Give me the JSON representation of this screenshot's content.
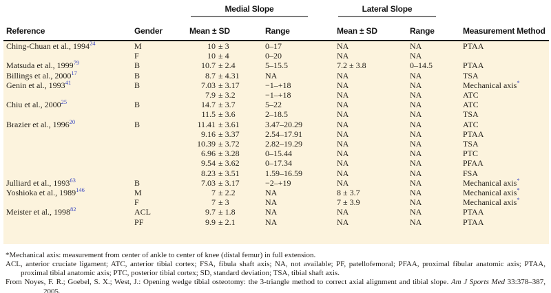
{
  "table": {
    "headers": {
      "reference": "Reference",
      "gender": "Gender",
      "medial_group": "Medial Slope",
      "lateral_group": "Lateral Slope",
      "medial_mean_sd": "Mean ± SD",
      "medial_range": "Range",
      "lateral_mean_sd": "Mean ± SD",
      "lateral_range": "Range",
      "method": "Measurement Method"
    },
    "rows": [
      {
        "reference": "Ching-Chuan et al., 1994",
        "ref_sup": "24",
        "gender": "M",
        "medial_mean": "10",
        "medial_sd": "± 3",
        "medial_range": "0–17",
        "lateral_mean": "NA",
        "lateral_range": "NA",
        "method": "PTAA",
        "method_sup": ""
      },
      {
        "reference": "",
        "ref_sup": "",
        "gender": "F",
        "medial_mean": "10",
        "medial_sd": "± 4",
        "medial_range": "0–20",
        "lateral_mean": "NA",
        "lateral_range": "NA",
        "method": "",
        "method_sup": ""
      },
      {
        "reference": "Matsuda et al., 1999",
        "ref_sup": "79",
        "gender": "B",
        "medial_mean": "10.7",
        "medial_sd": "± 2.4",
        "medial_range": "5–15.5",
        "lateral_mean": "7.2 ± 3.8",
        "lateral_range": "0–14.5",
        "method": "PTAA",
        "method_sup": ""
      },
      {
        "reference": "Billings et al., 2000",
        "ref_sup": "17",
        "gender": "B",
        "medial_mean": "8.7",
        "medial_sd": "± 4.31",
        "medial_range": "NA",
        "lateral_mean": "NA",
        "lateral_range": "NA",
        "method": "TSA",
        "method_sup": ""
      },
      {
        "reference": "Genin et al., 1993",
        "ref_sup": "41",
        "gender": "B",
        "medial_mean": "7.03",
        "medial_sd": "± 3.17",
        "medial_range": "−1–+18",
        "lateral_mean": "NA",
        "lateral_range": "NA",
        "method": "Mechanical axis",
        "method_sup": "*"
      },
      {
        "reference": "",
        "ref_sup": "",
        "gender": "",
        "medial_mean": "7.9",
        "medial_sd": "± 3.2",
        "medial_range": "−1–+18",
        "lateral_mean": "NA",
        "lateral_range": "NA",
        "method": "ATC",
        "method_sup": ""
      },
      {
        "reference": "Chiu et al., 2000",
        "ref_sup": "25",
        "gender": "B",
        "medial_mean": "14.7",
        "medial_sd": "± 3.7",
        "medial_range": "5–22",
        "lateral_mean": "NA",
        "lateral_range": "NA",
        "method": "ATC",
        "method_sup": ""
      },
      {
        "reference": "",
        "ref_sup": "",
        "gender": "",
        "medial_mean": "11.5",
        "medial_sd": "± 3.6",
        "medial_range": "2–18.5",
        "lateral_mean": "NA",
        "lateral_range": "NA",
        "method": "TSA",
        "method_sup": ""
      },
      {
        "reference": "Brazier et al., 1996",
        "ref_sup": "20",
        "gender": "B",
        "medial_mean": "11.41",
        "medial_sd": "± 3.61",
        "medial_range": "3.47–20.29",
        "lateral_mean": "NA",
        "lateral_range": "NA",
        "method": "ATC",
        "method_sup": ""
      },
      {
        "reference": "",
        "ref_sup": "",
        "gender": "",
        "medial_mean": "9.16",
        "medial_sd": "± 3.37",
        "medial_range": "2.54–17.91",
        "lateral_mean": "NA",
        "lateral_range": "NA",
        "method": "PTAA",
        "method_sup": ""
      },
      {
        "reference": "",
        "ref_sup": "",
        "gender": "",
        "medial_mean": "10.39",
        "medial_sd": "± 3.72",
        "medial_range": "2.82–19.29",
        "lateral_mean": "NA",
        "lateral_range": "NA",
        "method": "TSA",
        "method_sup": ""
      },
      {
        "reference": "",
        "ref_sup": "",
        "gender": "",
        "medial_mean": "6.96",
        "medial_sd": "± 3.28",
        "medial_range": "0–15.44",
        "lateral_mean": "NA",
        "lateral_range": "NA",
        "method": "PTC",
        "method_sup": ""
      },
      {
        "reference": "",
        "ref_sup": "",
        "gender": "",
        "medial_mean": "9.54",
        "medial_sd": "± 3.62",
        "medial_range": "0–17.34",
        "lateral_mean": "NA",
        "lateral_range": "NA",
        "method": "PFAA",
        "method_sup": ""
      },
      {
        "reference": "",
        "ref_sup": "",
        "gender": "",
        "medial_mean": "8.23",
        "medial_sd": "± 3.51",
        "medial_range": "1.59–16.59",
        "lateral_mean": "NA",
        "lateral_range": "NA",
        "method": "FSA",
        "method_sup": ""
      },
      {
        "reference": "Julliard et al., 1993",
        "ref_sup": "63",
        "gender": "B",
        "medial_mean": "7.03",
        "medial_sd": "± 3.17",
        "medial_range": "−2–+19",
        "lateral_mean": "NA",
        "lateral_range": "NA",
        "method": "Mechanical axis",
        "method_sup": "*"
      },
      {
        "reference": "Yoshioka et al., 1989",
        "ref_sup": "146",
        "gender": "M",
        "medial_mean": "7",
        "medial_sd": "± 2.2",
        "medial_range": "NA",
        "lateral_mean": "8 ± 3.7",
        "lateral_range": "NA",
        "method": "Mechanical axis",
        "method_sup": "*"
      },
      {
        "reference": "",
        "ref_sup": "",
        "gender": "F",
        "medial_mean": "7",
        "medial_sd": "± 3",
        "medial_range": "NA",
        "lateral_mean": "7 ± 3.9",
        "lateral_range": "NA",
        "method": "Mechanical axis",
        "method_sup": "*"
      },
      {
        "reference": "Meister et al., 1998",
        "ref_sup": "82",
        "gender": "ACL",
        "medial_mean": "9.7",
        "medial_sd": "± 1.8",
        "medial_range": "NA",
        "lateral_mean": "NA",
        "lateral_range": "NA",
        "method": "PTAA",
        "method_sup": ""
      },
      {
        "reference": "",
        "ref_sup": "",
        "gender": "PF",
        "medial_mean": "9.9",
        "medial_sd": "± 2.1",
        "medial_range": "NA",
        "lateral_mean": "NA",
        "lateral_range": "NA",
        "method": "PTAA",
        "method_sup": ""
      }
    ]
  },
  "footnotes": {
    "mechanical_axis_note": "*Mechanical axis: measurement from center of ankle to center of knee (distal femur) in full extension.",
    "abbreviations": "ACL, anterior cruciate ligament; ATC, anterior tibial cortex; FSA, fibula shaft axis; NA, not available; PF, patellofemoral; PFAA, proximal fibular anatomic axis; PTAA, proximal tibial anatomic axis; PTC, posterior tibial cortex; SD, standard deviation; TSA, tibial shaft axis.",
    "source_prefix": "From Noyes, F. R.; Goebel, S. X.; West, J.: Opening wedge tibial osteotomy: the 3-triangle method to correct axial alignment and tibial slope. ",
    "source_journal": "Am J Sports Med",
    "source_suffix": " 33:378–387, 2005."
  },
  "colors": {
    "body_background": "#fcf3dd",
    "citation_blue": "#3a46c0",
    "text": "#231f19"
  }
}
